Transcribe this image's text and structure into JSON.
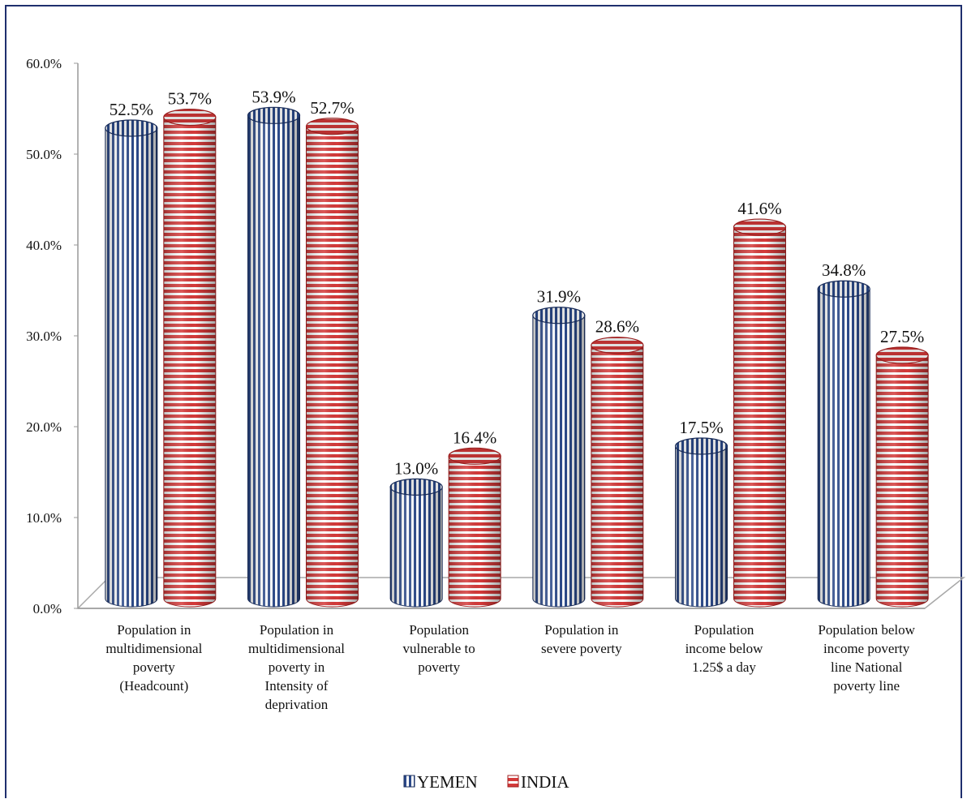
{
  "chart_data": {
    "type": "bar",
    "style": "3d-cylinder",
    "categories": [
      "Population in multidimensional poverty (Headcount)",
      "Population in multidimensional poverty in Intensity of deprivation",
      "Population vulnerable to poverty",
      "Population in severe poverty",
      "Population income below 1.25$ a day",
      "Population below income poverty line National poverty line"
    ],
    "category_lines": [
      [
        "Population in",
        "multidimensional",
        "poverty",
        "(Headcount)"
      ],
      [
        "Population in",
        "multidimensional",
        "poverty in",
        "Intensity of",
        "deprivation"
      ],
      [
        "Population",
        "vulnerable to",
        "poverty"
      ],
      [
        "Population in",
        "severe poverty"
      ],
      [
        "Population",
        "income below",
        "1.25$ a day"
      ],
      [
        "Population below",
        "income poverty",
        "line National",
        "poverty line"
      ]
    ],
    "series": [
      {
        "name": "YEMEN",
        "values": [
          52.5,
          53.9,
          13.0,
          31.9,
          17.5,
          34.8
        ],
        "labels": [
          "52.5%",
          "53.9%",
          "13.0%",
          "31.9%",
          "17.5%",
          "34.8%"
        ],
        "color": "#2c4a8a",
        "pattern": "vertical-stripes"
      },
      {
        "name": "INDIA",
        "values": [
          53.7,
          52.7,
          16.4,
          28.6,
          41.6,
          27.5
        ],
        "labels": [
          "53.7%",
          "52.7%",
          "16.4%",
          "28.6%",
          "41.6%",
          "27.5%"
        ],
        "color": "#d43a3a",
        "pattern": "horizontal-stripes"
      }
    ],
    "ylim": [
      0,
      60
    ],
    "yticks": [
      "0.0%",
      "10.0%",
      "20.0%",
      "30.0%",
      "40.0%",
      "50.0%",
      "60.0%"
    ],
    "xlabel": "",
    "ylabel": "",
    "title": "",
    "grid": false,
    "legend": "bottom-center"
  }
}
